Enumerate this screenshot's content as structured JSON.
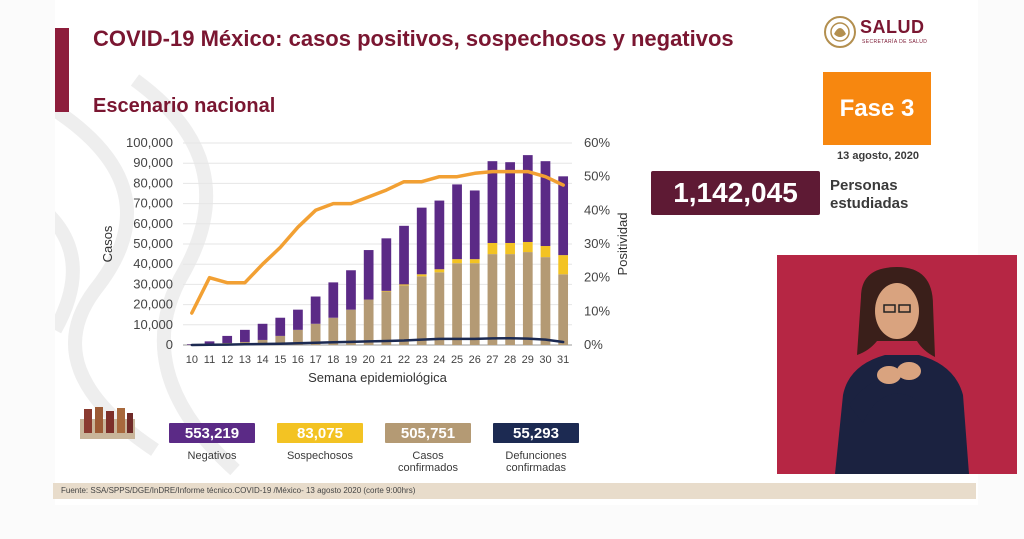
{
  "header": {
    "title": "COVID-19 México: casos positivos, sospechosos y negativos",
    "subtitle": "Escenario nacional",
    "logo_text": "SALUD",
    "logo_subtext": "SECRETARÍA DE SALUD"
  },
  "phase": {
    "label": "Fase 3",
    "date": "13 agosto, 2020"
  },
  "total": {
    "value": "1,142,045",
    "label": "Personas estudiadas"
  },
  "stats": [
    {
      "value": "553,219",
      "label": "Negativos",
      "color": "#5b2a86"
    },
    {
      "value": "83,075",
      "label": "Sospechosos",
      "color": "#f3c323"
    },
    {
      "value": "505,751",
      "label": "Casos confirmados",
      "color": "#b49a74"
    },
    {
      "value": "55,293",
      "label": "Defunciones confirmadas",
      "color": "#1c2a52"
    }
  ],
  "footer": {
    "source": "Fuente: SSA/SPPS/DGE/InDRE/Informe técnico.COVID-19 /México- 13 agosto 2020 (corte 9:00hrs)"
  },
  "colors": {
    "negativos": "#5b2a86",
    "sospechosos": "#f3c323",
    "confirmados": "#b49a74",
    "defunciones": "#1c2a52",
    "positividad": "#f2a033",
    "brand": "#7a1631",
    "phase": "#f7870f"
  },
  "chart_data": {
    "type": "bar",
    "xlabel": "Semana epidemiológica",
    "ylabel": "Casos",
    "y2label": "Positividad",
    "ylim": [
      0,
      100000
    ],
    "y2lim": [
      0,
      60
    ],
    "yticks": [
      "0",
      "10,000",
      "20,000",
      "30,000",
      "40,000",
      "50,000",
      "60,000",
      "70,000",
      "80,000",
      "90,000",
      "100,000"
    ],
    "y2ticks": [
      "0%",
      "10%",
      "20%",
      "30%",
      "40%",
      "50%",
      "60%"
    ],
    "categories": [
      "10",
      "11",
      "12",
      "13",
      "14",
      "15",
      "16",
      "17",
      "18",
      "19",
      "20",
      "21",
      "22",
      "23",
      "24",
      "25",
      "26",
      "27",
      "28",
      "29",
      "30",
      "31"
    ],
    "series": [
      {
        "type": "bar",
        "values": [
          100,
          600,
          1000,
          1500,
          2500,
          4500,
          7500,
          10500,
          13500,
          17500,
          22500,
          26500,
          29500,
          34000,
          36000,
          40500,
          40500,
          45000,
          45000,
          46000,
          43500,
          35000
        ]
      },
      {
        "type": "bar",
        "values": [
          0,
          0,
          0,
          0,
          0,
          0,
          0,
          0,
          0,
          0,
          0,
          300,
          500,
          1000,
          1500,
          2000,
          2000,
          5500,
          5500,
          5000,
          5500,
          9500
        ]
      },
      {
        "type": "bar",
        "values": [
          300,
          1200,
          3500,
          6000,
          8000,
          9000,
          10000,
          13500,
          17500,
          19500,
          24500,
          26000,
          29000,
          33000,
          34000,
          37000,
          34000,
          40500,
          40000,
          43000,
          42000,
          39000
        ]
      },
      {
        "type": "line",
        "values": [
          10,
          90,
          200,
          350,
          500,
          650,
          850,
          1100,
          1350,
          1550,
          1800,
          2000,
          2250,
          2650,
          3000,
          3000,
          3000,
          3250,
          3300,
          3150,
          2650,
          1500
        ]
      },
      {
        "type": "line",
        "axis": "right",
        "values": [
          9.5,
          20,
          18.5,
          18.5,
          24,
          29,
          35,
          40,
          42,
          42,
          44,
          46,
          48.5,
          48.5,
          50,
          50,
          51,
          51.5,
          51.5,
          51.5,
          50,
          47.5
        ]
      }
    ]
  }
}
